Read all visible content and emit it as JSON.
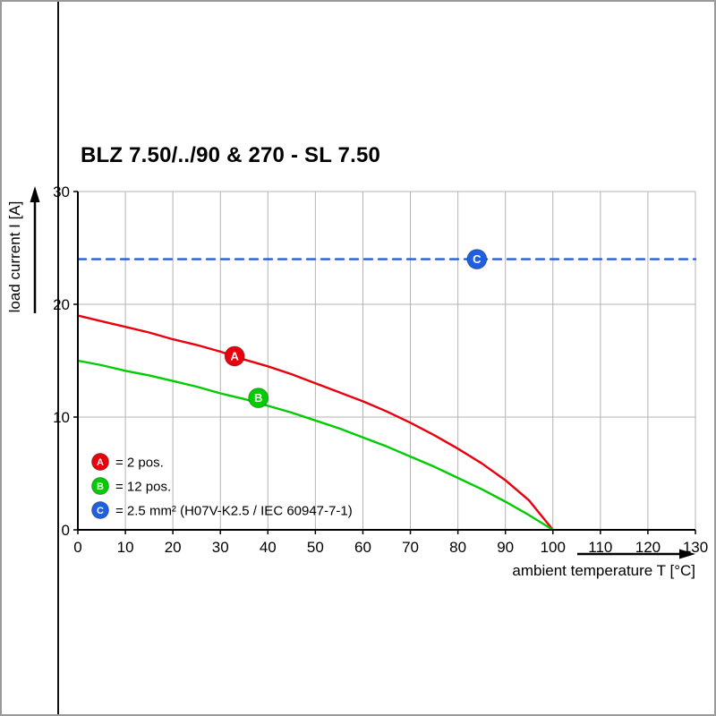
{
  "page": {
    "title": "BLZ 7.50/../90 & 270 - SL 7.50"
  },
  "chart_data": {
    "type": "line",
    "title": "BLZ 7.50/../90 & 270 - SL 7.50",
    "xlabel": "ambient temperature T [°C]",
    "ylabel": "load current I [A]",
    "xlim": [
      0,
      130
    ],
    "ylim": [
      0,
      30
    ],
    "x_ticks": [
      0,
      10,
      20,
      30,
      40,
      50,
      60,
      70,
      80,
      90,
      100,
      110,
      120,
      130
    ],
    "y_ticks": [
      0,
      10,
      20,
      30
    ],
    "grid": true,
    "grid_color": "#b3b3b3",
    "axis_color": "#000000",
    "legend_position": "bottom-left-inside",
    "series": [
      {
        "name": "A",
        "label": "= 2 pos.",
        "color": "#e8000d",
        "style": "solid",
        "x": [
          0,
          5,
          10,
          15,
          20,
          25,
          30,
          35,
          40,
          45,
          50,
          55,
          60,
          65,
          70,
          75,
          80,
          85,
          90,
          95,
          100
        ],
        "y": [
          19.0,
          18.5,
          18.0,
          17.5,
          16.9,
          16.4,
          15.8,
          15.1,
          14.5,
          13.8,
          13.0,
          12.2,
          11.4,
          10.5,
          9.5,
          8.4,
          7.2,
          5.9,
          4.4,
          2.6,
          0
        ],
        "marker": {
          "x": 33,
          "y": 15.4,
          "letter": "A"
        }
      },
      {
        "name": "B",
        "label": "= 12 pos.",
        "color": "#00cc00",
        "style": "solid",
        "x": [
          0,
          5,
          10,
          15,
          20,
          25,
          30,
          35,
          40,
          45,
          50,
          55,
          60,
          65,
          70,
          75,
          80,
          85,
          90,
          95,
          100
        ],
        "y": [
          15.0,
          14.6,
          14.1,
          13.7,
          13.2,
          12.7,
          12.1,
          11.6,
          11.0,
          10.4,
          9.7,
          9.0,
          8.2,
          7.4,
          6.5,
          5.6,
          4.6,
          3.6,
          2.5,
          1.3,
          0
        ],
        "marker": {
          "x": 38,
          "y": 11.7,
          "letter": "B"
        }
      },
      {
        "name": "C",
        "label": "= 2.5 mm² (H07V-K2.5 / IEC 60947-7-1)",
        "color": "#1f5fe0",
        "style": "dashed",
        "x": [
          0,
          130
        ],
        "y": [
          24,
          24
        ],
        "marker": {
          "x": 84,
          "y": 24,
          "letter": "C"
        }
      }
    ]
  }
}
